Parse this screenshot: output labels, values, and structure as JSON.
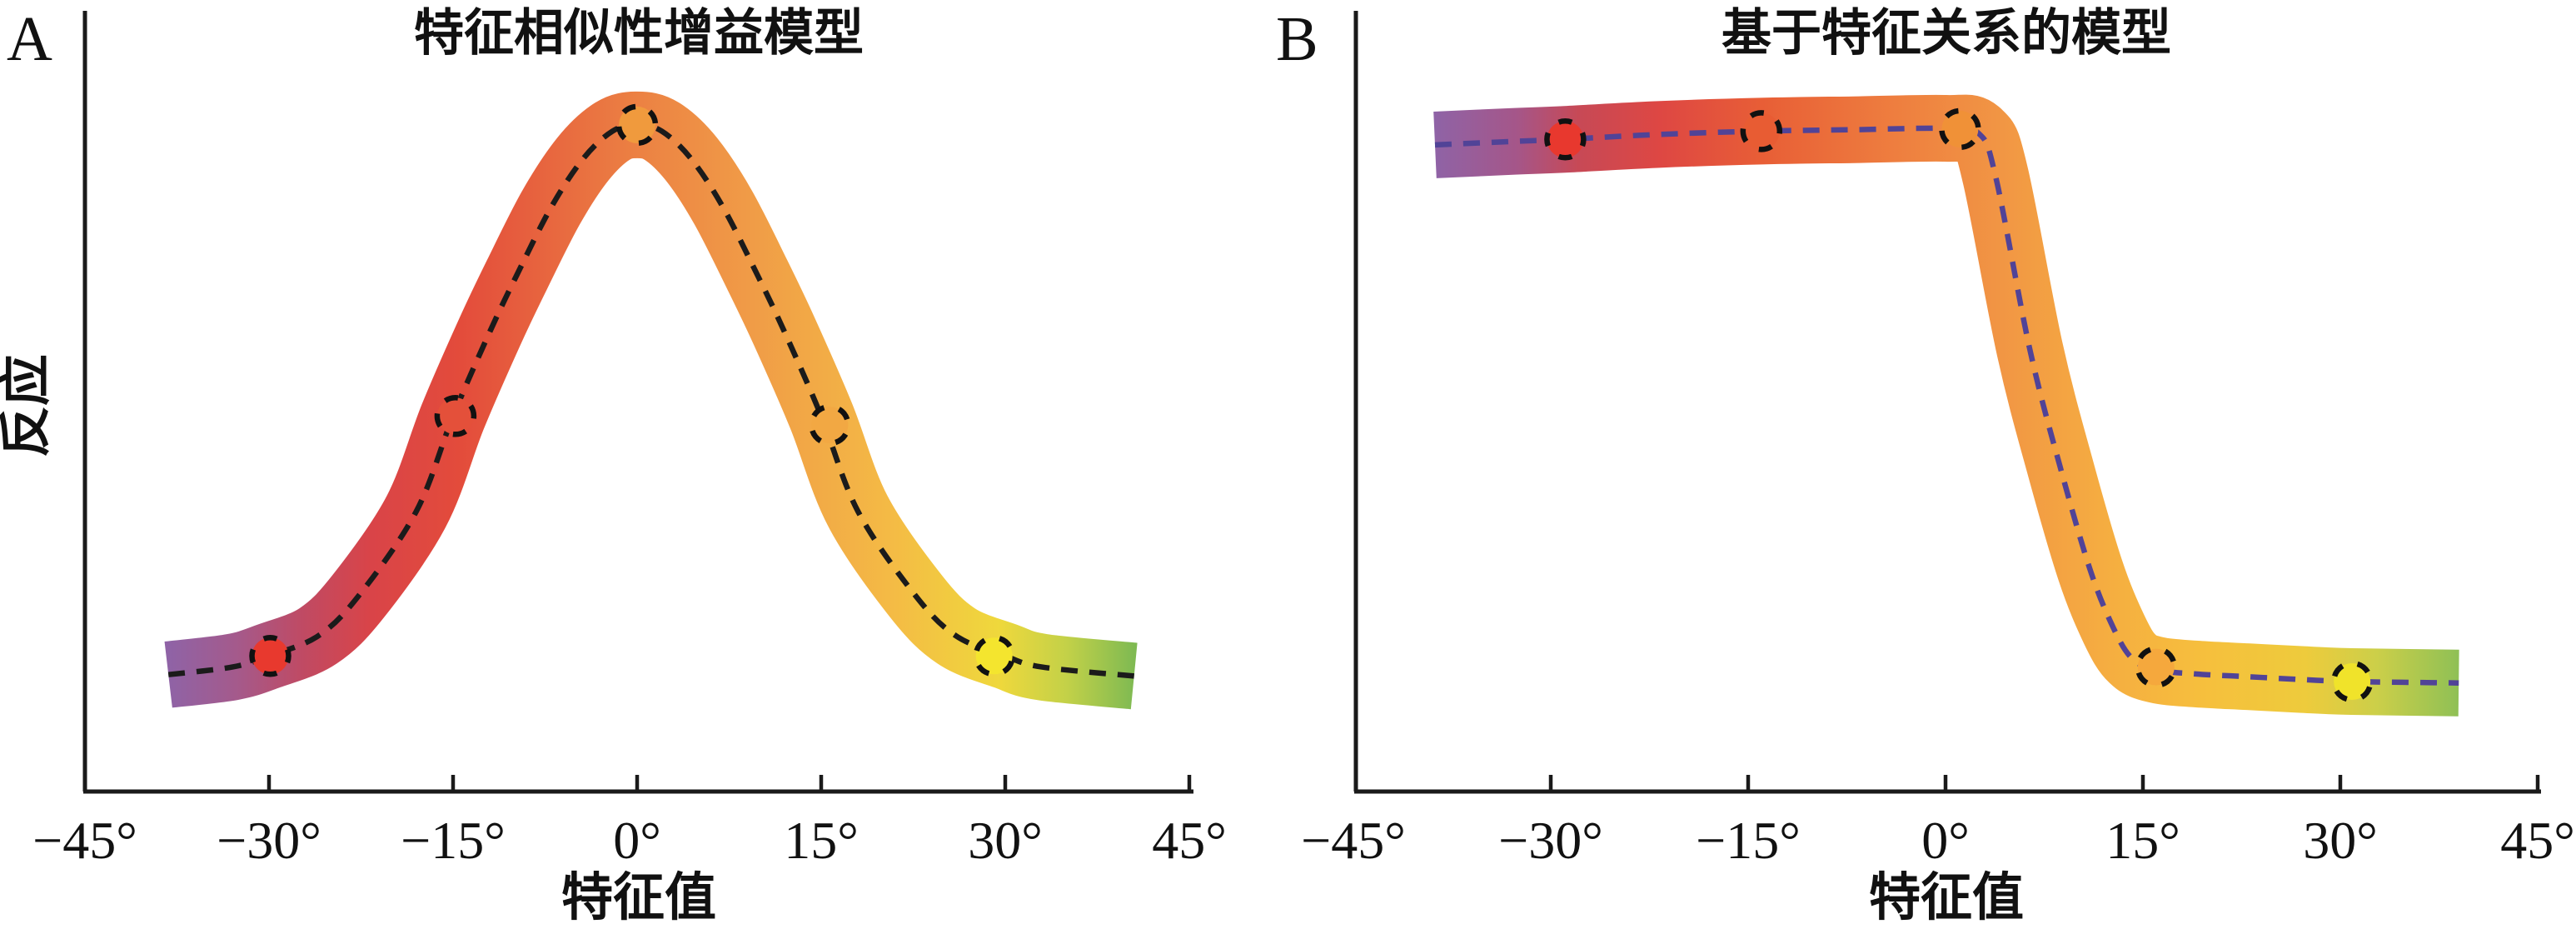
{
  "figure": {
    "background": "#ffffff"
  },
  "panels": [
    {
      "letter": "A",
      "title": "特征相似性增益模型",
      "ylabel": "反应",
      "xlabel": "特征值",
      "x_tick_labels": [
        "−45°",
        "−30°",
        "−15°",
        "0°",
        "15°",
        "30°",
        "45°"
      ],
      "x_tick_degrees": [
        -45,
        -30,
        -15,
        0,
        15,
        30,
        45
      ],
      "line_color": "#1b1b1b",
      "line_dash": "20 14",
      "band_width": 80,
      "band_gradient": [
        [
          0.0,
          "#8f63a6"
        ],
        [
          0.07,
          "#a45a8c"
        ],
        [
          0.14,
          "#c04a63"
        ],
        [
          0.21,
          "#d94448"
        ],
        [
          0.3,
          "#e34b3b"
        ],
        [
          0.49,
          "#ec8243"
        ],
        [
          0.6,
          "#f09b47"
        ],
        [
          0.75,
          "#f4bb45"
        ],
        [
          0.86,
          "#efd83c"
        ],
        [
          0.93,
          "#c3d148"
        ],
        [
          1.0,
          "#7fba52"
        ]
      ],
      "curve": [
        [
          -38.2,
          0.169
        ],
        [
          -33,
          0.18
        ],
        [
          -30,
          0.196
        ],
        [
          -26,
          0.225
        ],
        [
          -22.7,
          0.283
        ],
        [
          -18,
          0.405
        ],
        [
          -15,
          0.543
        ],
        [
          -12,
          0.665
        ],
        [
          -9.8,
          0.747
        ],
        [
          -7,
          0.845
        ],
        [
          -4.4,
          0.915
        ],
        [
          -2,
          0.955
        ],
        [
          0,
          0.964
        ],
        [
          2,
          0.955
        ],
        [
          4.4,
          0.915
        ],
        [
          7,
          0.845
        ],
        [
          9.8,
          0.747
        ],
        [
          12,
          0.665
        ],
        [
          15,
          0.543
        ],
        [
          18,
          0.405
        ],
        [
          22.7,
          0.283
        ],
        [
          26,
          0.225
        ],
        [
          30,
          0.196
        ],
        [
          33,
          0.18
        ],
        [
          40.5,
          0.167
        ]
      ],
      "markers": [
        {
          "deg": -29.9,
          "r": 0.196,
          "fill": "#e8392e"
        },
        {
          "deg": -14.8,
          "r": 0.543,
          "fill": "#e4503a"
        },
        {
          "deg": 0,
          "r": 0.964,
          "fill": "#f09a3d"
        },
        {
          "deg": 15.7,
          "r": 0.53,
          "fill": "#f2a843"
        },
        {
          "deg": 29.1,
          "r": 0.196,
          "fill": "#f4e52e"
        }
      ]
    },
    {
      "letter": "B",
      "title": "基于特征关系的模型",
      "ylabel": "",
      "xlabel": "特征值",
      "x_tick_labels": [
        "−45°",
        "−30°",
        "−15°",
        "0°",
        "15°",
        "30°",
        "45°"
      ],
      "x_tick_degrees": [
        -45,
        -30,
        -15,
        0,
        15,
        30,
        45
      ],
      "line_color": "#514397",
      "line_dash": "20 14",
      "band_width": 80,
      "band_gradient": [
        [
          0.0,
          "#8f63a6"
        ],
        [
          0.08,
          "#a55689"
        ],
        [
          0.14,
          "#c74956"
        ],
        [
          0.22,
          "#de4743"
        ],
        [
          0.32,
          "#e85e36"
        ],
        [
          0.45,
          "#ee7e3f"
        ],
        [
          0.55,
          "#f19544"
        ],
        [
          0.65,
          "#f5ac41"
        ],
        [
          0.75,
          "#f6bf3d"
        ],
        [
          0.85,
          "#eecb3c"
        ],
        [
          0.92,
          "#cccf49"
        ],
        [
          1.0,
          "#8fc055"
        ]
      ],
      "curve": [
        [
          -38.8,
          0.935
        ],
        [
          -33,
          0.94
        ],
        [
          -29,
          0.943
        ],
        [
          -22,
          0.95
        ],
        [
          -14,
          0.955
        ],
        [
          -7,
          0.957
        ],
        [
          0,
          0.959
        ],
        [
          2.5,
          0.952
        ],
        [
          3.8,
          0.89
        ],
        [
          6.4,
          0.64
        ],
        [
          8.7,
          0.47
        ],
        [
          11,
          0.32
        ],
        [
          12.8,
          0.235
        ],
        [
          14.2,
          0.192
        ],
        [
          16,
          0.176
        ],
        [
          19,
          0.17
        ],
        [
          23,
          0.166
        ],
        [
          27,
          0.162
        ],
        [
          30.9,
          0.159
        ],
        [
          39,
          0.157
        ]
      ],
      "markers": [
        {
          "deg": -28.9,
          "r": 0.943,
          "fill": "#e8382e"
        },
        {
          "deg": -14.0,
          "r": 0.955,
          "fill": "#e85c33"
        },
        {
          "deg": 1.1,
          "r": 0.958,
          "fill": "#f09137"
        },
        {
          "deg": 16.0,
          "r": 0.18,
          "fill": "#f5a83d"
        },
        {
          "deg": 30.9,
          "r": 0.159,
          "fill": "#f0e32a"
        }
      ]
    }
  ],
  "chart_data": [
    {
      "type": "line",
      "panel": "A",
      "title": "特征相似性增益模型",
      "xlabel": "特征值",
      "ylabel": "反应",
      "x_ticks": [
        -45,
        -30,
        -15,
        0,
        15,
        30,
        45
      ],
      "x_tick_unit": "degrees",
      "xlim": [
        -45,
        45
      ],
      "ylim": [
        0,
        1
      ],
      "y_axis": "unlabeled normalized response (no ticks)",
      "grid": false,
      "legend": false,
      "series": [
        {
          "name": "bell-shaped (Gaussian-like) tuning curve, band midline",
          "x": [
            -38,
            -30,
            -22.7,
            -15,
            -10,
            -4.4,
            0,
            4.4,
            10,
            15,
            22.7,
            30,
            40
          ],
          "y": [
            0.17,
            0.2,
            0.28,
            0.54,
            0.75,
            0.92,
            0.96,
            0.92,
            0.75,
            0.54,
            0.28,
            0.2,
            0.17
          ]
        }
      ],
      "marked_points": {
        "x": [
          -30,
          -15,
          0,
          15,
          30
        ],
        "y": [
          0.2,
          0.54,
          0.96,
          0.53,
          0.2
        ]
      },
      "style": "thick gradient band (purple→red→orange→yellow→green) with black dashed midline and dashed-outline circle markers"
    },
    {
      "type": "line",
      "panel": "B",
      "title": "基于特征关系的模型",
      "xlabel": "特征值",
      "ylabel": "",
      "x_ticks": [
        -45,
        -30,
        -15,
        0,
        15,
        30,
        45
      ],
      "x_tick_unit": "degrees",
      "xlim": [
        -45,
        45
      ],
      "ylim": [
        0,
        1
      ],
      "y_axis": "unlabeled normalized response (no ticks)",
      "grid": false,
      "legend": false,
      "series": [
        {
          "name": "step / sigmoid-like curve: high plateau for negative features, sharp drop after 0°, low plateau after ~15°",
          "x": [
            -38.8,
            -30,
            -15,
            0,
            3.8,
            6.4,
            8.7,
            11,
            14.2,
            16,
            23,
            30.9,
            39
          ],
          "y": [
            0.935,
            0.943,
            0.955,
            0.959,
            0.89,
            0.64,
            0.47,
            0.32,
            0.19,
            0.18,
            0.17,
            0.16,
            0.16
          ]
        }
      ],
      "marked_points": {
        "x": [
          -30,
          -15,
          0,
          15,
          30
        ],
        "y": [
          0.94,
          0.955,
          0.96,
          0.18,
          0.16
        ]
      },
      "style": "thick gradient band (purple→red→orange→yellow→green) with dark-violet dashed midline and dashed-outline circle markers"
    }
  ]
}
